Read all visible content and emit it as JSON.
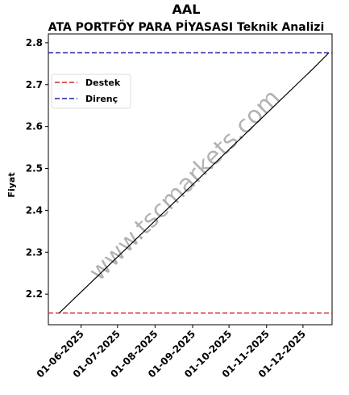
{
  "chart_data": {
    "type": "line",
    "title": "AAL",
    "subtitle": "ATA PORTFÖY PARA PİYASASI Teknik Analizi",
    "y_label": "Fiyat",
    "watermark": "www.tscmarkets.com",
    "x": [
      "2025-05-14",
      "2025-05-28",
      "2025-06-11",
      "2025-06-25",
      "2025-07-09",
      "2025-07-23",
      "2025-08-06",
      "2025-08-20",
      "2025-09-03",
      "2025-09-17",
      "2025-10-01",
      "2025-10-15",
      "2025-10-29",
      "2025-11-12",
      "2025-11-26",
      "2025-12-10",
      "2025-12-22"
    ],
    "series": [
      {
        "color": "#000000",
        "values": [
          2.155,
          2.194,
          2.233,
          2.272,
          2.311,
          2.35,
          2.389,
          2.428,
          2.467,
          2.506,
          2.545,
          2.584,
          2.623,
          2.662,
          2.701,
          2.74,
          2.775
        ]
      }
    ],
    "hlines": [
      {
        "name": "Destek",
        "color": "#d62728",
        "value": 2.155
      },
      {
        "name": "Direnç",
        "color": "#1f1fa0",
        "value": 2.776
      }
    ],
    "xlim": [
      "2025-05-05",
      "2025-12-25"
    ],
    "xticks": [
      {
        "value": "2025-06-01",
        "label": "01-06-2025"
      },
      {
        "value": "2025-07-01",
        "label": "01-07-2025"
      },
      {
        "value": "2025-08-01",
        "label": "01-08-2025"
      },
      {
        "value": "2025-09-01",
        "label": "01-09-2025"
      },
      {
        "value": "2025-10-01",
        "label": "01-10-2025"
      },
      {
        "value": "2025-11-01",
        "label": "01-11-2025"
      },
      {
        "value": "2025-12-01",
        "label": "01-12-2025"
      }
    ],
    "ylim": [
      2.127,
      2.821
    ],
    "yticks": [
      2.2,
      2.3,
      2.4,
      2.5,
      2.6,
      2.7,
      2.8
    ],
    "legend": "upper-left"
  }
}
